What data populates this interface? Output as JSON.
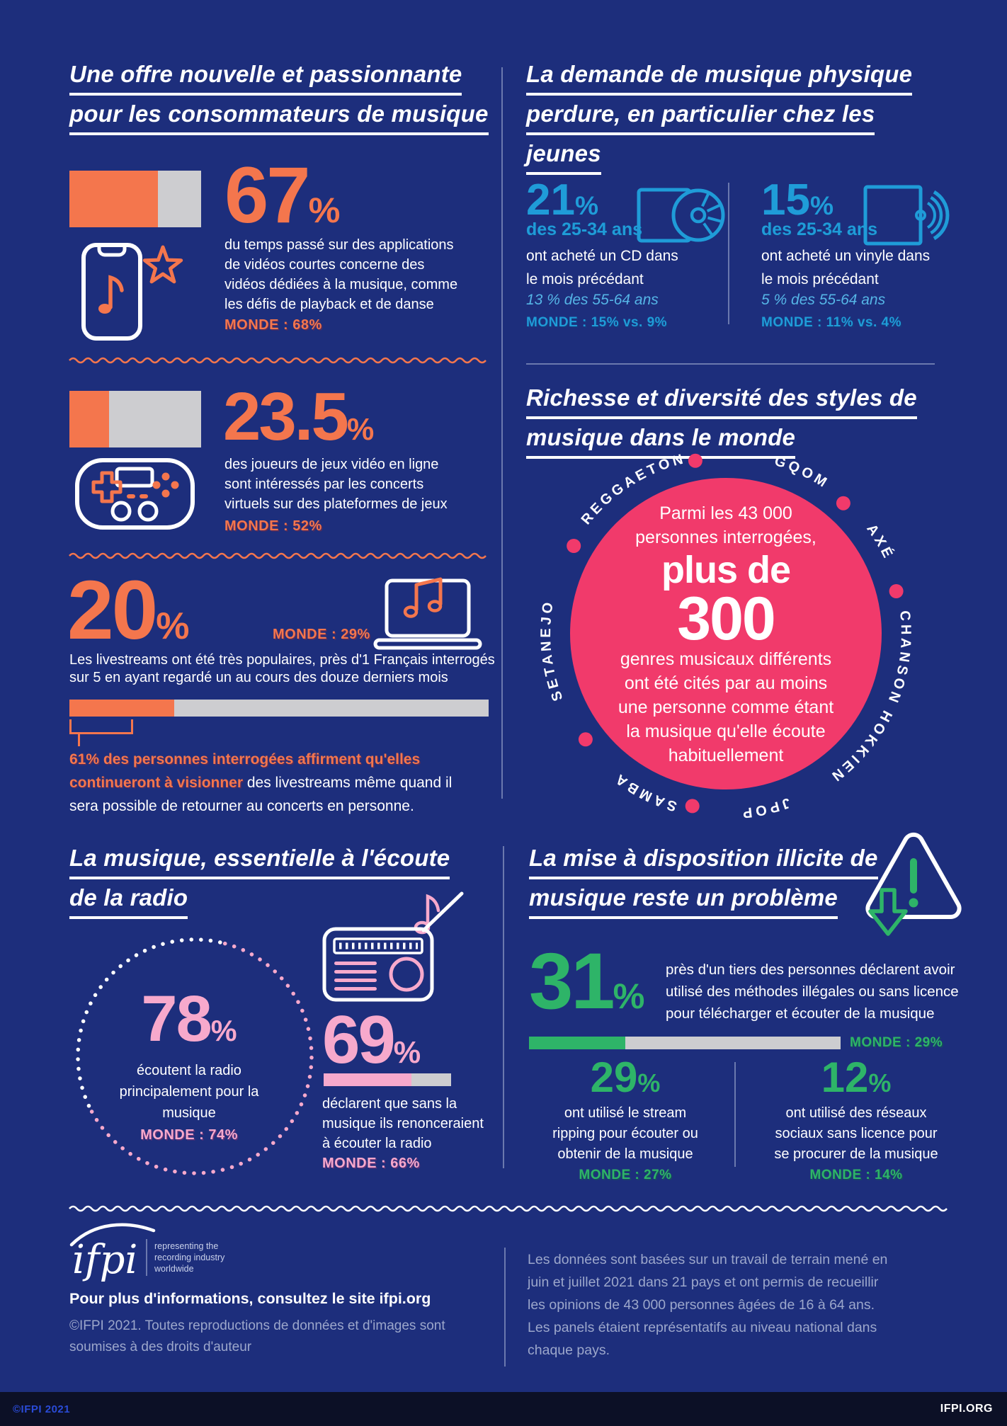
{
  "colors": {
    "navy": "#1d2e7c",
    "orange": "#f4764d",
    "blue": "#1f9cd8",
    "blue_light": "#55b5e6",
    "pink": "#f13a6b",
    "pink_light": "#f7a9cc",
    "green": "#2eb468",
    "bar_gray": "#cdcdd0"
  },
  "sections": {
    "new_offer": {
      "title_lines": [
        "Une offre nouvelle et passionnante",
        "pour les consommateurs de musique"
      ],
      "short_video": {
        "value": "67",
        "unit": "%",
        "bar_pct": 67,
        "desc_lines": [
          "du temps passé sur des applications",
          "de vidéos courtes concerne des",
          "vidéos dédiées à la musique, comme",
          "les défis de playback et de danse"
        ],
        "monde": "MONDE : 68%"
      },
      "gaming": {
        "value": "23.5",
        "unit": "%",
        "bar_pct": 30,
        "desc_lines": [
          "des joueurs de jeux vidéo en ligne",
          "sont intéressés par les concerts",
          "virtuels sur des plateformes de jeux"
        ],
        "monde": "MONDE : 52%"
      },
      "livestream": {
        "value": "20",
        "unit": "%",
        "monde": "MONDE : 29%",
        "bar_pct": 25,
        "desc_lines": [
          "Les livestreams ont été très populaires, près d'1 Français interrogés",
          "sur 5 en ayant regardé un au cours des douze derniers mois"
        ],
        "highlight_line1": "61% des personnes interrogées affirment qu'elles",
        "highlight_line2": "continueront à visionner",
        "plain_line2": " des livestreams même quand il",
        "plain_line3": "sera possible de retourner au concerts en personne."
      }
    },
    "physical": {
      "title_lines": [
        "La demande de musique physique",
        "perdure, en particulier chez les",
        "jeunes"
      ],
      "cd": {
        "value": "21",
        "unit": "%",
        "group": "des 25-34 ans",
        "desc_lines": [
          "ont acheté un CD dans",
          "le mois précédant"
        ],
        "older": "13 % des 55-64 ans",
        "monde": "MONDE : 15% vs. 9%"
      },
      "vinyl": {
        "value": "15",
        "unit": "%",
        "group": "des 25-34 ans",
        "desc_lines": [
          "ont acheté un vinyle dans",
          "le mois précédant"
        ],
        "older": "5 % des 55-64 ans",
        "monde": "MONDE : 11% vs. 4%"
      }
    },
    "diversity": {
      "title_lines": [
        "Richesse et diversité des styles de",
        "musique dans le monde"
      ],
      "circle_top_lines": [
        "Parmi les 43 000",
        "personnes interrogées,"
      ],
      "big1": "plus de",
      "big2": "300",
      "circle_bottom_lines": [
        "genres musicaux différents",
        "ont été cités par au moins",
        "une personne comme étant",
        "la musique qu'elle écoute",
        "habituellement"
      ],
      "genres": [
        {
          "label": "REGGAETON",
          "offset_pct": 91
        },
        {
          "label": "GQOM",
          "offset_pct": 7
        },
        {
          "label": "AXÉ",
          "offset_pct": 16.5
        },
        {
          "label": "CHANSON HOKKIEN",
          "offset_pct": 31.5
        },
        {
          "label": "JPOP",
          "offset_pct": 46.5
        },
        {
          "label": "SAMBA",
          "offset_pct": 57.5
        },
        {
          "label": "SETANEJO",
          "offset_pct": 73.5
        }
      ],
      "dot_angles": [
        -10,
        42,
        76,
        191,
        233,
        300
      ]
    },
    "radio": {
      "title_lines": [
        "La musique, essentielle à l'écoute",
        "de la radio"
      ],
      "listen": {
        "value": "78",
        "unit": "%",
        "desc_lines": [
          "écoutent la radio",
          "principalement pour la",
          "musique"
        ],
        "monde": "MONDE : 74%"
      },
      "quit": {
        "value": "69",
        "unit": "%",
        "bar_pct": 69,
        "desc_lines": [
          "déclarent que sans la",
          "musique ils renonceraient",
          "à écouter la radio"
        ],
        "monde": "MONDE : 66%"
      }
    },
    "piracy": {
      "title_lines": [
        "La mise à disposition illicite de",
        "musique reste un problème"
      ],
      "main": {
        "value": "31",
        "unit": "%",
        "bar_pct": 31,
        "desc_lines": [
          "près d'un tiers des personnes déclarent avoir",
          "utilisé des méthodes illégales ou sans licence",
          "pour télécharger et écouter de la musique"
        ],
        "monde": "MONDE : 29%"
      },
      "stream_ripping": {
        "value": "29",
        "unit": "%",
        "desc_lines": [
          "ont utilisé le stream",
          "ripping pour écouter ou",
          "obtenir de la musique"
        ],
        "monde": "MONDE : 27%"
      },
      "social": {
        "value": "12",
        "unit": "%",
        "desc_lines": [
          "ont utilisé des réseaux",
          "sociaux sans licence pour",
          "se procurer de la musique"
        ],
        "monde": "MONDE : 14%"
      }
    },
    "footer": {
      "logo_text": "ifpi",
      "rep_lines": [
        "representing the",
        "recording industry",
        "worldwide"
      ],
      "info_bold": "Pour plus d'informations, consultez le site ifpi.org",
      "copyright_lines": [
        "©IFPI 2021. Toutes reproductions de données et d'images sont",
        "soumises à des droits d'auteur"
      ],
      "note_lines": [
        "Les données sont basées sur un travail de terrain mené en",
        "juin et juillet 2021 dans 21 pays et ont permis de recueillir",
        "les opinions de 43 000 personnes âgées de 16 à 64 ans.",
        "Les panels étaient représentatifs au niveau national dans",
        "chaque pays."
      ],
      "bar_left": "©IFPI 2021",
      "bar_right": "IFPI.ORG"
    }
  }
}
